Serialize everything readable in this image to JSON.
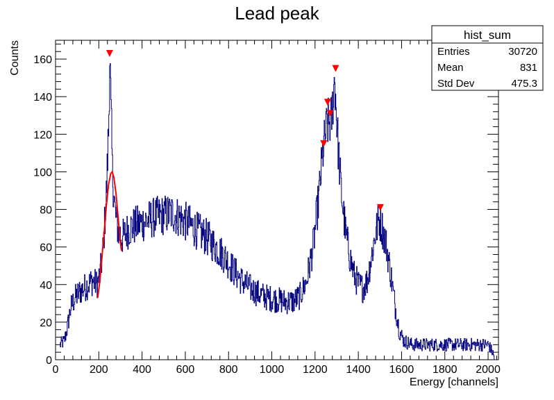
{
  "chart_data": {
    "type": "histogram",
    "title": "Lead peak",
    "xlabel": "Energy [channels]",
    "ylabel": "Counts",
    "xlim": [
      0,
      2048
    ],
    "ylim": [
      0,
      170
    ],
    "x_ticks": [
      0,
      200,
      400,
      600,
      800,
      1000,
      1200,
      1400,
      1600,
      1800,
      2000
    ],
    "y_ticks": [
      0,
      20,
      40,
      60,
      80,
      100,
      120,
      140,
      160
    ],
    "series_color": "#00007f",
    "fit_color": "#ff0000",
    "marker_color": "#ff0000",
    "histogram_envelope": [
      {
        "x": 20,
        "y": 8
      },
      {
        "x": 40,
        "y": 10
      },
      {
        "x": 55,
        "y": 18
      },
      {
        "x": 70,
        "y": 28
      },
      {
        "x": 90,
        "y": 33
      },
      {
        "x": 110,
        "y": 36
      },
      {
        "x": 130,
        "y": 38
      },
      {
        "x": 150,
        "y": 40
      },
      {
        "x": 170,
        "y": 42
      },
      {
        "x": 190,
        "y": 40
      },
      {
        "x": 205,
        "y": 45
      },
      {
        "x": 220,
        "y": 60
      },
      {
        "x": 235,
        "y": 90
      },
      {
        "x": 245,
        "y": 125
      },
      {
        "x": 250,
        "y": 162
      },
      {
        "x": 255,
        "y": 135
      },
      {
        "x": 262,
        "y": 100
      },
      {
        "x": 275,
        "y": 78
      },
      {
        "x": 290,
        "y": 68
      },
      {
        "x": 310,
        "y": 65
      },
      {
        "x": 340,
        "y": 70
      },
      {
        "x": 380,
        "y": 72
      },
      {
        "x": 420,
        "y": 74
      },
      {
        "x": 460,
        "y": 76
      },
      {
        "x": 500,
        "y": 77
      },
      {
        "x": 540,
        "y": 78
      },
      {
        "x": 580,
        "y": 75
      },
      {
        "x": 620,
        "y": 72
      },
      {
        "x": 660,
        "y": 68
      },
      {
        "x": 700,
        "y": 65
      },
      {
        "x": 740,
        "y": 60
      },
      {
        "x": 780,
        "y": 55
      },
      {
        "x": 820,
        "y": 48
      },
      {
        "x": 860,
        "y": 42
      },
      {
        "x": 900,
        "y": 38
      },
      {
        "x": 940,
        "y": 35
      },
      {
        "x": 980,
        "y": 33
      },
      {
        "x": 1020,
        "y": 32
      },
      {
        "x": 1060,
        "y": 31
      },
      {
        "x": 1100,
        "y": 31
      },
      {
        "x": 1130,
        "y": 34
      },
      {
        "x": 1160,
        "y": 42
      },
      {
        "x": 1190,
        "y": 60
      },
      {
        "x": 1215,
        "y": 85
      },
      {
        "x": 1235,
        "y": 110
      },
      {
        "x": 1255,
        "y": 125
      },
      {
        "x": 1275,
        "y": 128
      },
      {
        "x": 1290,
        "y": 150
      },
      {
        "x": 1305,
        "y": 115
      },
      {
        "x": 1320,
        "y": 90
      },
      {
        "x": 1340,
        "y": 68
      },
      {
        "x": 1360,
        "y": 55
      },
      {
        "x": 1380,
        "y": 45
      },
      {
        "x": 1400,
        "y": 40
      },
      {
        "x": 1420,
        "y": 38
      },
      {
        "x": 1440,
        "y": 42
      },
      {
        "x": 1460,
        "y": 55
      },
      {
        "x": 1480,
        "y": 68
      },
      {
        "x": 1495,
        "y": 75
      },
      {
        "x": 1510,
        "y": 70
      },
      {
        "x": 1530,
        "y": 60
      },
      {
        "x": 1550,
        "y": 45
      },
      {
        "x": 1570,
        "y": 28
      },
      {
        "x": 1590,
        "y": 15
      },
      {
        "x": 1610,
        "y": 10
      },
      {
        "x": 1650,
        "y": 8
      },
      {
        "x": 1700,
        "y": 8
      },
      {
        "x": 1750,
        "y": 8
      },
      {
        "x": 1800,
        "y": 8
      },
      {
        "x": 1850,
        "y": 8
      },
      {
        "x": 1900,
        "y": 8
      },
      {
        "x": 1950,
        "y": 8
      },
      {
        "x": 2000,
        "y": 8
      },
      {
        "x": 2020,
        "y": 4
      },
      {
        "x": 2030,
        "y": 0
      }
    ],
    "fit_curve": [
      {
        "x": 195,
        "y": 33
      },
      {
        "x": 205,
        "y": 42
      },
      {
        "x": 215,
        "y": 55
      },
      {
        "x": 225,
        "y": 68
      },
      {
        "x": 235,
        "y": 82
      },
      {
        "x": 245,
        "y": 93
      },
      {
        "x": 255,
        "y": 99
      },
      {
        "x": 262,
        "y": 100
      },
      {
        "x": 270,
        "y": 97
      },
      {
        "x": 280,
        "y": 88
      },
      {
        "x": 290,
        "y": 75
      },
      {
        "x": 300,
        "y": 62
      },
      {
        "x": 305,
        "y": 58
      }
    ],
    "peak_markers": [
      {
        "x": 250,
        "y": 163
      },
      {
        "x": 1240,
        "y": 115
      },
      {
        "x": 1258,
        "y": 137
      },
      {
        "x": 1270,
        "y": 131
      },
      {
        "x": 1295,
        "y": 155
      },
      {
        "x": 1502,
        "y": 81
      }
    ],
    "stats_box": {
      "title": "hist_sum",
      "rows": [
        {
          "label": "Entries",
          "value": "30720"
        },
        {
          "label": "Mean",
          "value": "831"
        },
        {
          "label": "Std Dev",
          "value": "475.3"
        }
      ]
    }
  }
}
